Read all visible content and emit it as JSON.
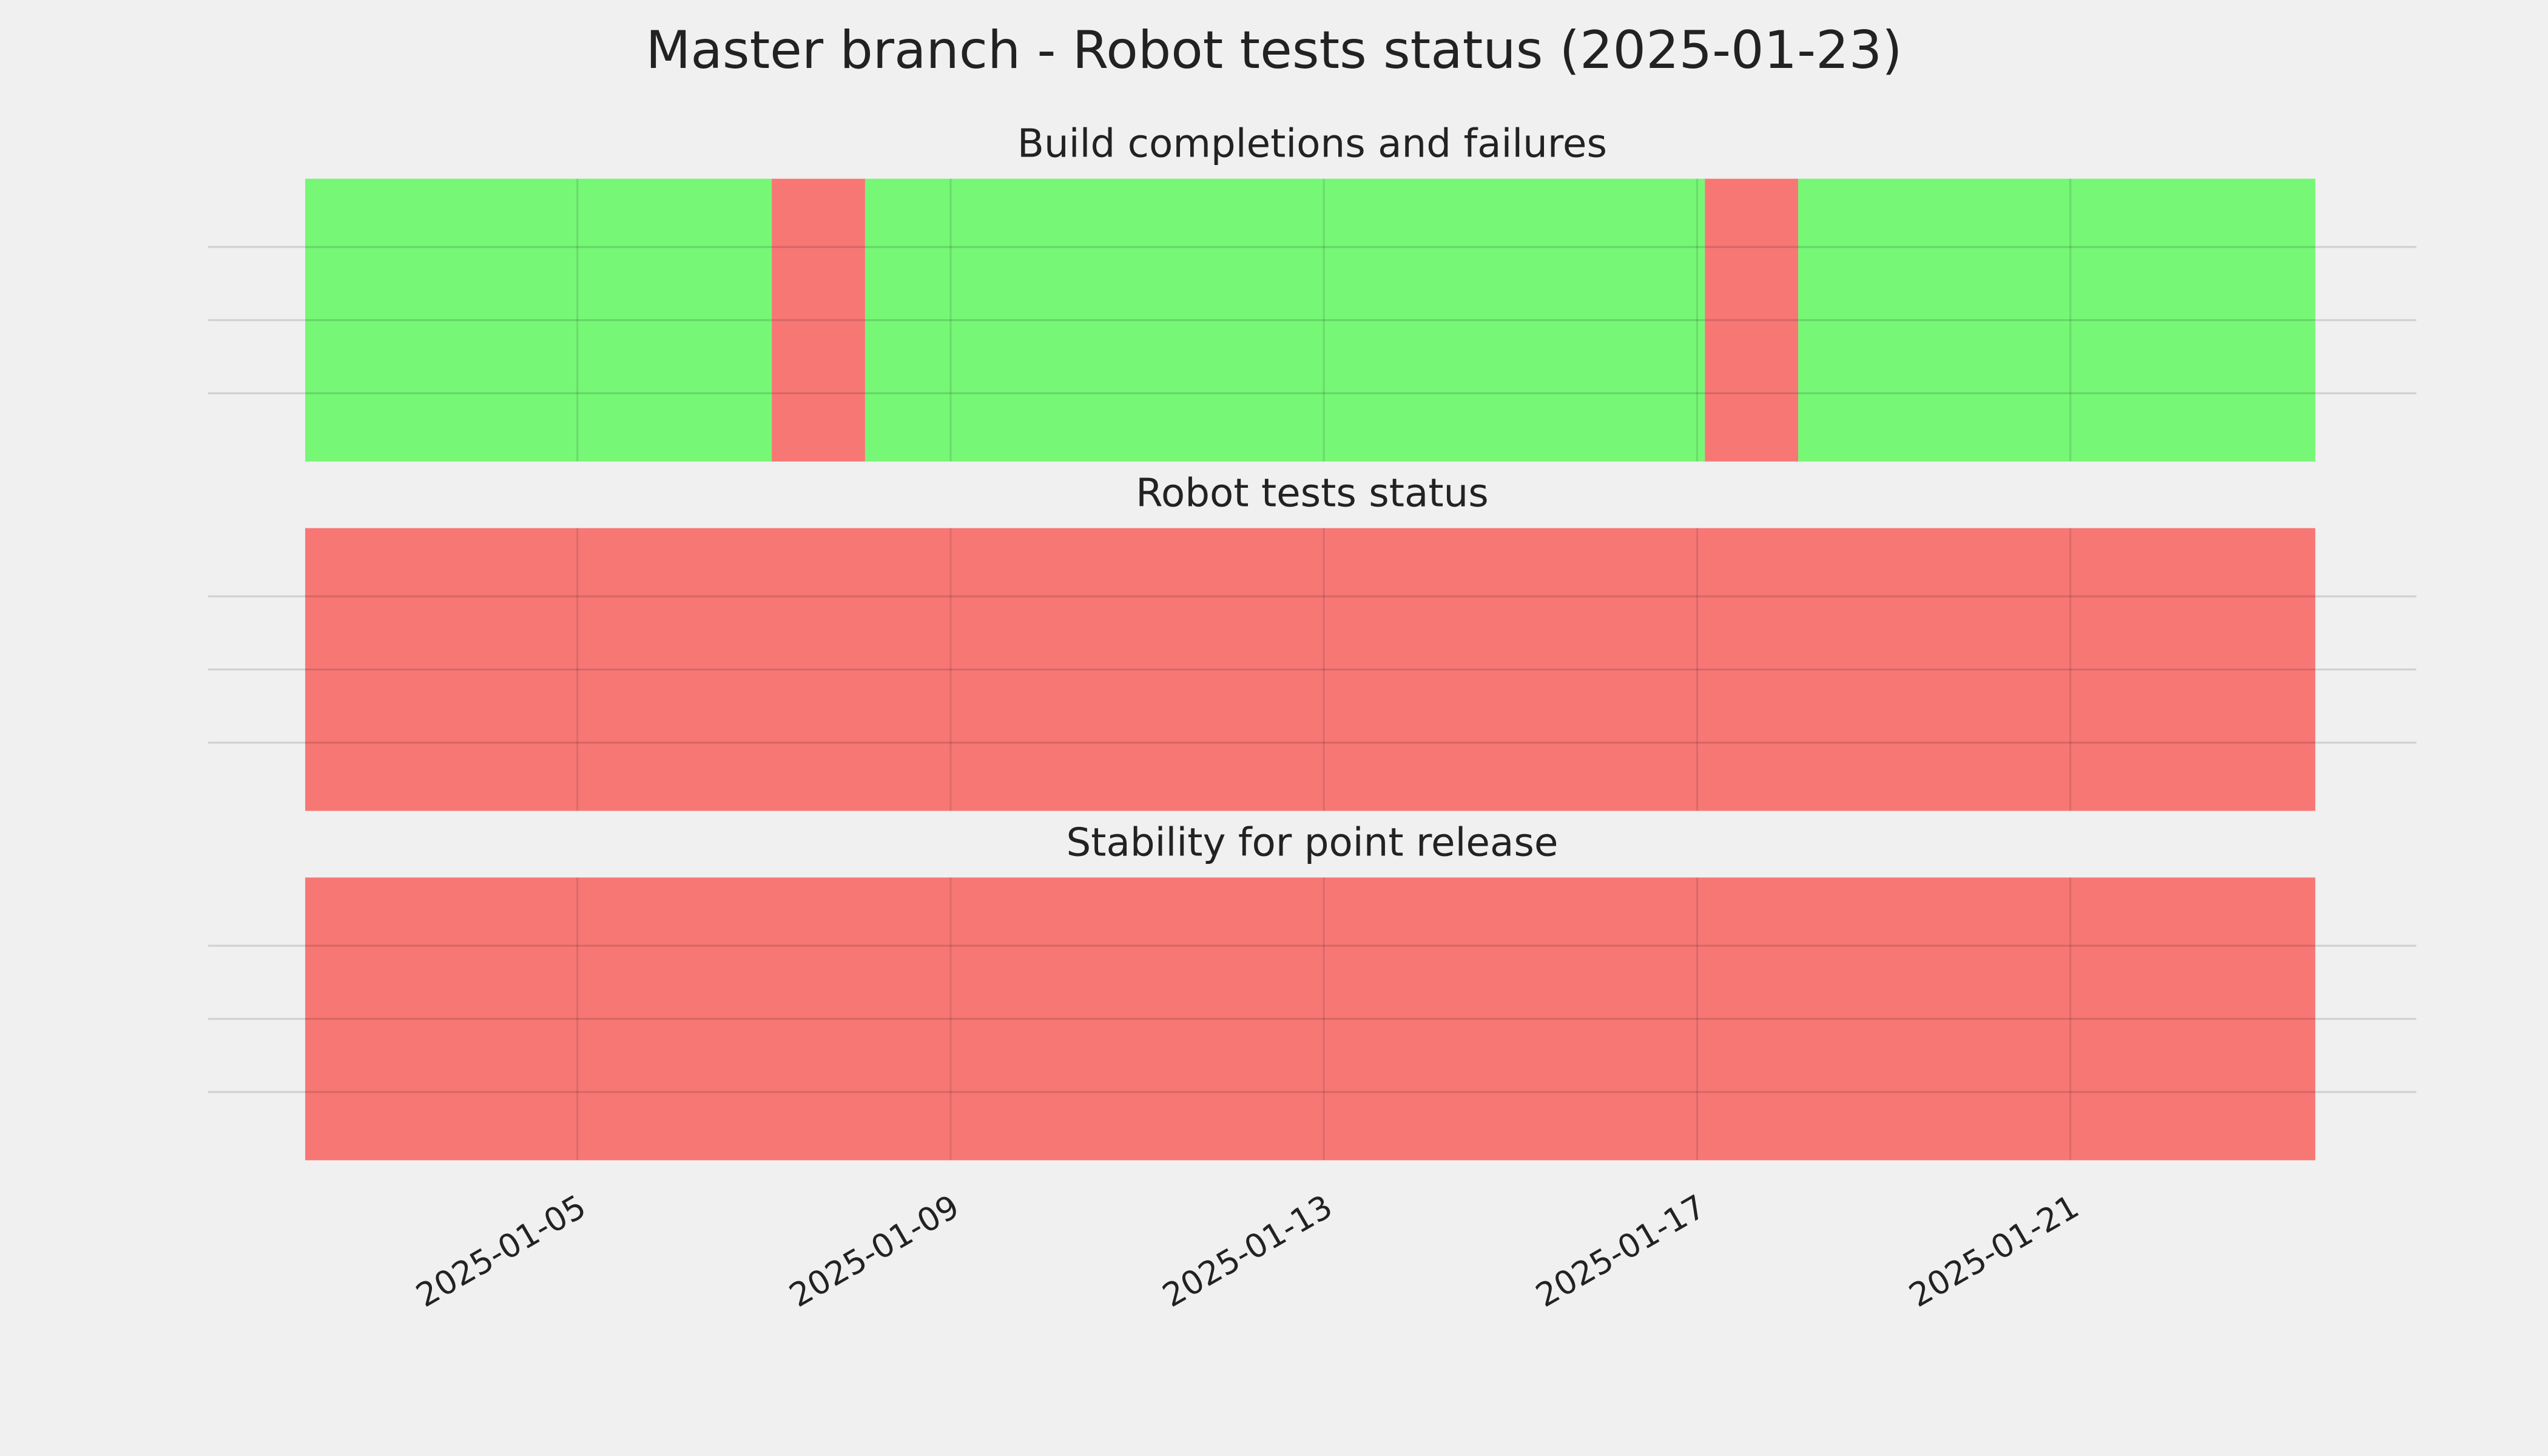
{
  "title": "Master branch - Robot tests status (2025-01-23)",
  "chart_data": [
    {
      "type": "timeline",
      "title": "Build completions and failures",
      "xlim": [
        "2025-01-01T01:00",
        "2025-01-24T17:00"
      ],
      "xticks": [
        "2025-01-05",
        "2025-01-09",
        "2025-01-13",
        "2025-01-17",
        "2025-01-21"
      ],
      "grid": true,
      "spans": [
        {
          "start": "2025-01-02T02:00",
          "end": "2025-01-07T02:00",
          "color": "#76f776"
        },
        {
          "start": "2025-01-07T02:00",
          "end": "2025-01-08T02:00",
          "color": "#f77775"
        },
        {
          "start": "2025-01-08T02:00",
          "end": "2025-01-17T02:00",
          "color": "#76f776"
        },
        {
          "start": "2025-01-17T02:00",
          "end": "2025-01-18T02:00",
          "color": "#f77775"
        },
        {
          "start": "2025-01-18T02:00",
          "end": "2025-01-23T15:00",
          "color": "#76f776"
        }
      ]
    },
    {
      "type": "timeline",
      "title": "Robot tests status",
      "xlim": [
        "2025-01-01T01:00",
        "2025-01-24T17:00"
      ],
      "xticks": [
        "2025-01-05",
        "2025-01-09",
        "2025-01-13",
        "2025-01-17",
        "2025-01-21"
      ],
      "grid": true,
      "spans": [
        {
          "start": "2025-01-02T02:00",
          "end": "2025-01-23T15:00",
          "color": "#f77775"
        }
      ]
    },
    {
      "type": "timeline",
      "title": "Stability for point release",
      "xlim": [
        "2025-01-01T01:00",
        "2025-01-24T17:00"
      ],
      "xticks": [
        "2025-01-05",
        "2025-01-09",
        "2025-01-13",
        "2025-01-17",
        "2025-01-21"
      ],
      "grid": true,
      "spans": [
        {
          "start": "2025-01-02T02:00",
          "end": "2025-01-23T15:00",
          "color": "#f77775"
        }
      ]
    }
  ]
}
